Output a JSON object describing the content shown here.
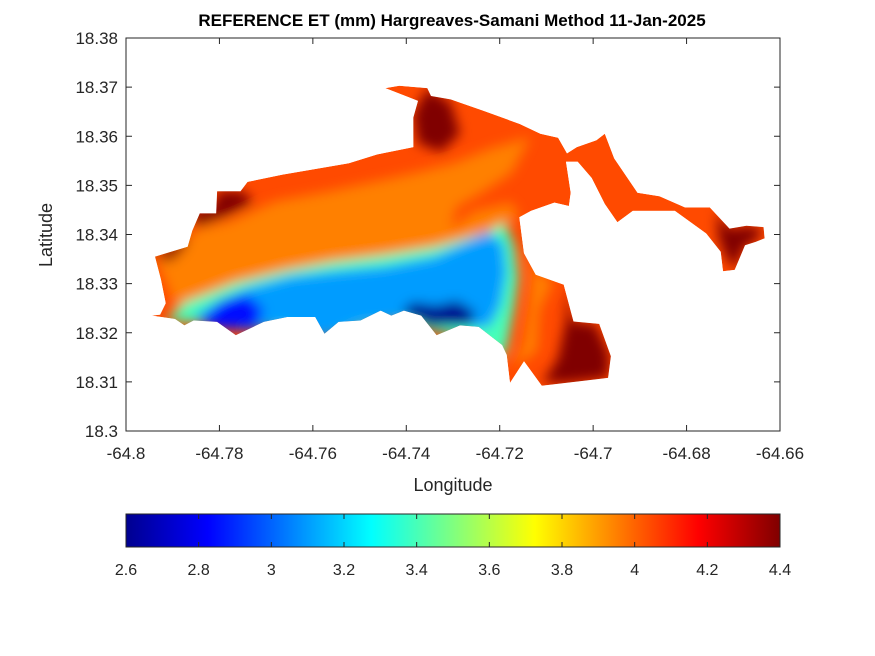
{
  "chart_data": {
    "type": "heatmap",
    "title": "REFERENCE ET (mm) Hargreaves-Samani Method  11-Jan-2025",
    "xlabel": "Longitude",
    "ylabel": "Latitude",
    "xlim": [
      -64.8,
      -64.66
    ],
    "ylim": [
      18.3,
      18.38
    ],
    "xticks": [
      "-64.8",
      "-64.78",
      "-64.76",
      "-64.74",
      "-64.72",
      "-64.7",
      "-64.68",
      "-64.66"
    ],
    "yticks": [
      "18.3",
      "18.31",
      "18.32",
      "18.33",
      "18.34",
      "18.35",
      "18.36",
      "18.37",
      "18.38"
    ],
    "colorbar": {
      "colormap": "jet",
      "range": [
        2.6,
        4.4
      ],
      "ticks": [
        "2.6",
        "2.8",
        "3",
        "3.2",
        "3.4",
        "3.6",
        "3.8",
        "4",
        "4.2",
        "4.4"
      ]
    },
    "grid": false,
    "boundary": [
      [
        -64.7945,
        18.3235
      ],
      [
        -64.7927,
        18.3237
      ],
      [
        -64.7915,
        18.326
      ],
      [
        -64.7925,
        18.3308
      ],
      [
        -64.7938,
        18.3355
      ],
      [
        -64.7868,
        18.3375
      ],
      [
        -64.7858,
        18.3408
      ],
      [
        -64.7842,
        18.3443
      ],
      [
        -64.7807,
        18.3443
      ],
      [
        -64.7805,
        18.3488
      ],
      [
        -64.7755,
        18.3488
      ],
      [
        -64.774,
        18.3507
      ],
      [
        -64.7665,
        18.3522
      ],
      [
        -64.7523,
        18.3545
      ],
      [
        -64.7462,
        18.3563
      ],
      [
        -64.7385,
        18.3578
      ],
      [
        -64.7385,
        18.3638
      ],
      [
        -64.7375,
        18.3672
      ],
      [
        -64.7445,
        18.3698
      ],
      [
        -64.7415,
        18.3703
      ],
      [
        -64.7355,
        18.3698
      ],
      [
        -64.7347,
        18.3682
      ],
      [
        -64.7305,
        18.3675
      ],
      [
        -64.7235,
        18.3652
      ],
      [
        -64.7157,
        18.3625
      ],
      [
        -64.7113,
        18.3605
      ],
      [
        -64.7075,
        18.3597
      ],
      [
        -64.7056,
        18.3565
      ],
      [
        -64.7035,
        18.3578
      ],
      [
        -64.6993,
        18.3592
      ],
      [
        -64.6975,
        18.3605
      ],
      [
        -64.6955,
        18.3555
      ],
      [
        -64.6905,
        18.3485
      ],
      [
        -64.6858,
        18.3478
      ],
      [
        -64.6803,
        18.3455
      ],
      [
        -64.675,
        18.3455
      ],
      [
        -64.6708,
        18.3412
      ],
      [
        -64.6672,
        18.3418
      ],
      [
        -64.6635,
        18.3415
      ],
      [
        -64.6633,
        18.3392
      ],
      [
        -64.6652,
        18.3385
      ],
      [
        -64.6675,
        18.3378
      ],
      [
        -64.6697,
        18.3328
      ],
      [
        -64.6722,
        18.3325
      ],
      [
        -64.6727,
        18.3365
      ],
      [
        -64.6758,
        18.3402
      ],
      [
        -64.6825,
        18.3448
      ],
      [
        -64.6915,
        18.3448
      ],
      [
        -64.6948,
        18.3425
      ],
      [
        -64.6975,
        18.3462
      ],
      [
        -64.7003,
        18.3515
      ],
      [
        -64.7033,
        18.3548
      ],
      [
        -64.7058,
        18.3548
      ],
      [
        -64.7048,
        18.3485
      ],
      [
        -64.7052,
        18.3458
      ],
      [
        -64.7083,
        18.3465
      ],
      [
        -64.7133,
        18.3448
      ],
      [
        -64.7158,
        18.3435
      ],
      [
        -64.7148,
        18.3362
      ],
      [
        -64.7123,
        18.3318
      ],
      [
        -64.7063,
        18.3298
      ],
      [
        -64.7042,
        18.3223
      ],
      [
        -64.6987,
        18.3218
      ],
      [
        -64.6962,
        18.3152
      ],
      [
        -64.6968,
        18.3108
      ],
      [
        -64.7058,
        18.3098
      ],
      [
        -64.711,
        18.3092
      ],
      [
        -64.7148,
        18.3142
      ],
      [
        -64.7178,
        18.3098
      ],
      [
        -64.7185,
        18.3155
      ],
      [
        -64.7195,
        18.3175
      ],
      [
        -64.7245,
        18.3212
      ],
      [
        -64.7285,
        18.3215
      ],
      [
        -64.7335,
        18.3195
      ],
      [
        -64.7368,
        18.3235
      ],
      [
        -64.7405,
        18.3245
      ],
      [
        -64.7432,
        18.3235
      ],
      [
        -64.7455,
        18.3245
      ],
      [
        -64.7498,
        18.3225
      ],
      [
        -64.7545,
        18.3222
      ],
      [
        -64.7575,
        18.3198
      ],
      [
        -64.7595,
        18.3232
      ],
      [
        -64.7655,
        18.3232
      ],
      [
        -64.7705,
        18.3222
      ],
      [
        -64.7765,
        18.3195
      ],
      [
        -64.7805,
        18.3222
      ],
      [
        -64.7855,
        18.3225
      ],
      [
        -64.7875,
        18.3215
      ],
      [
        -64.7895,
        18.3228
      ],
      [
        -64.7945,
        18.3235
      ]
    ],
    "contour_regions": [
      {
        "level": 3.4,
        "polygon": [
          [
            -64.7915,
            18.3225
          ],
          [
            -64.788,
            18.3258
          ],
          [
            -64.7838,
            18.3283
          ],
          [
            -64.7765,
            18.3312
          ],
          [
            -64.7655,
            18.3335
          ],
          [
            -64.7553,
            18.3352
          ],
          [
            -64.748,
            18.3362
          ],
          [
            -64.7388,
            18.3372
          ],
          [
            -64.7318,
            18.3395
          ],
          [
            -64.7268,
            18.3425
          ],
          [
            -64.7223,
            18.3442
          ],
          [
            -64.7188,
            18.3425
          ],
          [
            -64.7168,
            18.3375
          ],
          [
            -64.716,
            18.3312
          ],
          [
            -64.7168,
            18.3255
          ],
          [
            -64.7185,
            18.3168
          ],
          [
            -64.7218,
            18.3122
          ],
          [
            -64.73,
            18.3195
          ],
          [
            -64.7435,
            18.3225
          ],
          [
            -64.7575,
            18.319
          ],
          [
            -64.7705,
            18.3212
          ],
          [
            -64.7815,
            18.3218
          ],
          [
            -64.7915,
            18.3225
          ]
        ]
      },
      {
        "level": 3.1,
        "polygon": [
          [
            -64.7858,
            18.3232
          ],
          [
            -64.7805,
            18.3262
          ],
          [
            -64.7738,
            18.3292
          ],
          [
            -64.7648,
            18.3315
          ],
          [
            -64.7555,
            18.3325
          ],
          [
            -64.7445,
            18.3335
          ],
          [
            -64.7338,
            18.3355
          ],
          [
            -64.727,
            18.3385
          ],
          [
            -64.7225,
            18.3405
          ],
          [
            -64.7192,
            18.3382
          ],
          [
            -64.7185,
            18.3322
          ],
          [
            -64.7198,
            18.3255
          ],
          [
            -64.7222,
            18.3212
          ],
          [
            -64.7305,
            18.3212
          ],
          [
            -64.7405,
            18.3228
          ],
          [
            -64.7495,
            18.3218
          ],
          [
            -64.7578,
            18.3188
          ],
          [
            -64.7665,
            18.3215
          ],
          [
            -64.7745,
            18.3205
          ],
          [
            -64.7858,
            18.3232
          ]
        ]
      },
      {
        "level": 2.85,
        "polygon": [
          [
            -64.7845,
            18.3222
          ],
          [
            -64.7795,
            18.3268
          ],
          [
            -64.7742,
            18.3278
          ],
          [
            -64.7705,
            18.3248
          ],
          [
            -64.7722,
            18.3208
          ],
          [
            -64.7798,
            18.3208
          ],
          [
            -64.7845,
            18.3222
          ]
        ]
      },
      {
        "level": 2.6,
        "polygon": [
          [
            -64.7412,
            18.3238
          ],
          [
            -64.7388,
            18.3262
          ],
          [
            -64.7335,
            18.3255
          ],
          [
            -64.7292,
            18.3265
          ],
          [
            -64.7252,
            18.3242
          ],
          [
            -64.7262,
            18.3215
          ],
          [
            -64.7348,
            18.3212
          ],
          [
            -64.7412,
            18.3238
          ]
        ]
      },
      {
        "level": 3.95,
        "polygon": [
          [
            -64.7175,
            18.3128
          ],
          [
            -64.715,
            18.3178
          ],
          [
            -64.7138,
            18.3248
          ],
          [
            -64.7132,
            18.3318
          ],
          [
            -64.715,
            18.3372
          ],
          [
            -64.712,
            18.3325
          ],
          [
            -64.7085,
            18.3305
          ],
          [
            -64.7115,
            18.3245
          ],
          [
            -64.712,
            18.3162
          ],
          [
            -64.7175,
            18.3128
          ]
        ]
      },
      {
        "level": 3.95,
        "polygon": [
          [
            -64.7938,
            18.3352
          ],
          [
            -64.7885,
            18.3378
          ],
          [
            -64.7848,
            18.3412
          ],
          [
            -64.7775,
            18.3428
          ],
          [
            -64.768,
            18.3468
          ],
          [
            -64.7565,
            18.3488
          ],
          [
            -64.7465,
            18.3508
          ],
          [
            -64.7385,
            18.3525
          ],
          [
            -64.73,
            18.3545
          ],
          [
            -64.722,
            18.3575
          ],
          [
            -64.7135,
            18.3598
          ],
          [
            -64.7175,
            18.3525
          ],
          [
            -64.7238,
            18.3485
          ],
          [
            -64.7292,
            18.3455
          ],
          [
            -64.7305,
            18.3412
          ],
          [
            -64.7255,
            18.3448
          ],
          [
            -64.7175,
            18.3465
          ],
          [
            -64.7158,
            18.3435
          ],
          [
            -64.7188,
            18.3425
          ],
          [
            -64.7225,
            18.3405
          ],
          [
            -64.7338,
            18.3375
          ],
          [
            -64.7448,
            18.3358
          ],
          [
            -64.7558,
            18.3345
          ],
          [
            -64.7655,
            18.3328
          ],
          [
            -64.7765,
            18.3302
          ],
          [
            -64.7838,
            18.3275
          ],
          [
            -64.7895,
            18.3255
          ],
          [
            -64.7938,
            18.3352
          ]
        ]
      },
      {
        "level": 4.4,
        "polygon": [
          [
            -64.7385,
            18.3645
          ],
          [
            -64.7375,
            18.3585
          ],
          [
            -64.7325,
            18.3568
          ],
          [
            -64.7285,
            18.3605
          ],
          [
            -64.7305,
            18.3668
          ],
          [
            -64.7355,
            18.3698
          ],
          [
            -64.7385,
            18.3645
          ]
        ]
      },
      {
        "level": 4.4,
        "polygon": [
          [
            -64.7868,
            18.3442
          ],
          [
            -64.7808,
            18.3462
          ],
          [
            -64.7805,
            18.3488
          ],
          [
            -64.7748,
            18.3488
          ],
          [
            -64.7728,
            18.3465
          ],
          [
            -64.779,
            18.3435
          ],
          [
            -64.7845,
            18.3415
          ],
          [
            -64.7868,
            18.3442
          ]
        ]
      },
      {
        "level": 4.4,
        "polygon": [
          [
            -64.7938,
            18.3355
          ],
          [
            -64.7905,
            18.3345
          ],
          [
            -64.7875,
            18.3372
          ],
          [
            -64.7865,
            18.3402
          ],
          [
            -64.7895,
            18.3382
          ],
          [
            -64.7938,
            18.3355
          ]
        ]
      },
      {
        "level": 4.4,
        "polygon": [
          [
            -64.7058,
            18.3292
          ],
          [
            -64.7042,
            18.3222
          ],
          [
            -64.6995,
            18.3218
          ],
          [
            -64.6965,
            18.3155
          ],
          [
            -64.6968,
            18.3108
          ],
          [
            -64.7055,
            18.3098
          ],
          [
            -64.7108,
            18.3098
          ],
          [
            -64.7075,
            18.3148
          ],
          [
            -64.7058,
            18.3225
          ],
          [
            -64.7058,
            18.3292
          ]
        ]
      },
      {
        "level": 4.4,
        "polygon": [
          [
            -64.6735,
            18.3448
          ],
          [
            -64.6708,
            18.3412
          ],
          [
            -64.6672,
            18.3418
          ],
          [
            -64.6636,
            18.3413
          ],
          [
            -64.6652,
            18.3385
          ],
          [
            -64.6675,
            18.3378
          ],
          [
            -64.6697,
            18.3328
          ],
          [
            -64.6718,
            18.3358
          ],
          [
            -64.6732,
            18.3395
          ],
          [
            -64.6735,
            18.3448
          ]
        ]
      }
    ]
  }
}
